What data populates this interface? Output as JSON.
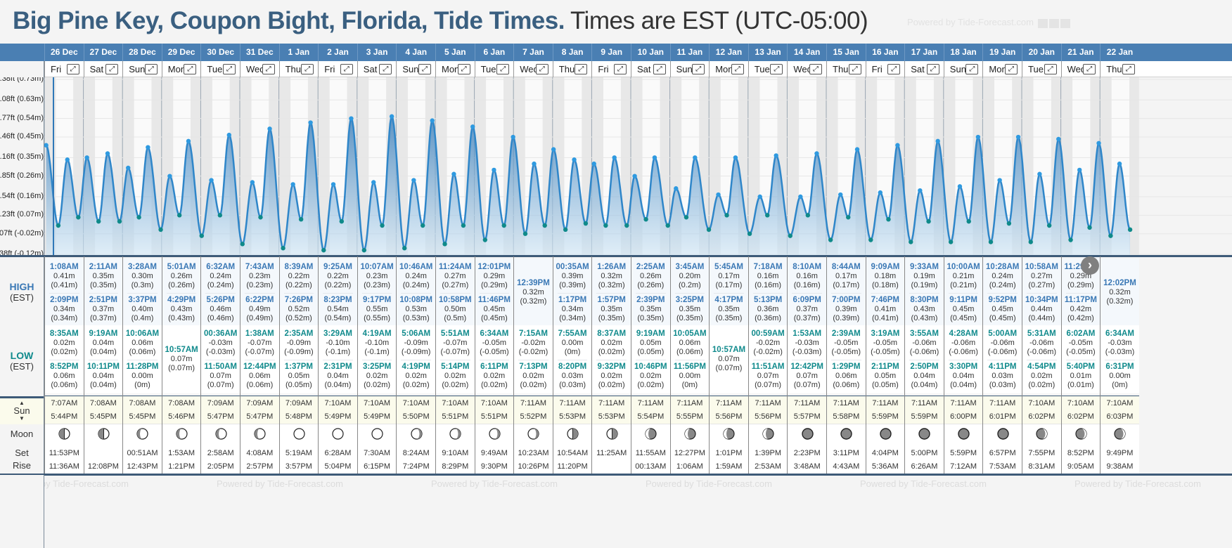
{
  "header": {
    "title": "Big Pine Key, Coupon Bight, Florida, Tide Times.",
    "timezone_note": "Times are EST (UTC-05:00)",
    "powered_by": "Powered by Tide-Forecast.com"
  },
  "labels": {
    "high": "HIGH",
    "high_sub": "(EST)",
    "low": "LOW",
    "low_sub": "(EST)",
    "sun": "Sun",
    "moon": "Moon",
    "set": "Set",
    "rise": "Rise",
    "expand_icon": "⤢",
    "next_icon": "›"
  },
  "colors": {
    "header_blue": "#4a7fb3",
    "title_blue": "#3a5f80",
    "high_text": "#3a78b5",
    "low_text": "#108a8c",
    "tide_line": "#2f86c9",
    "high_marker": "#2f9ae0",
    "low_marker": "#0f8a8a",
    "sun_row_bg": "#fbfbec"
  },
  "chart_data": {
    "type": "area",
    "title": "Tide height",
    "ylabel": "Height",
    "yaxis_ticks": [
      {
        "label": "2.38ft (0.73m)",
        "m": 0.73
      },
      {
        "label": "2.08ft (0.63m)",
        "m": 0.63
      },
      {
        "label": "1.77ft (0.54m)",
        "m": 0.54
      },
      {
        "label": "1.46ft (0.45m)",
        "m": 0.45
      },
      {
        "label": "1.16ft (0.35m)",
        "m": 0.35
      },
      {
        "label": "0.85ft (0.26m)",
        "m": 0.26
      },
      {
        "label": "0.54ft (0.16m)",
        "m": 0.16
      },
      {
        "label": "0.23ft (0.07m)",
        "m": 0.07
      },
      {
        "label": "-0.07ft (-0.02m)",
        "m": -0.02
      },
      {
        "label": "-0.38ft (-0.12m)",
        "m": -0.12
      }
    ],
    "ylim": [
      -0.12,
      0.73
    ],
    "grid": true,
    "x_unit": "days from 26 Dec 00:00",
    "series": [
      {
        "name": "tide",
        "points": []
      }
    ]
  },
  "days": [
    {
      "date": "26 Dec",
      "dow": "Fri",
      "highs": [
        {
          "t": "1:08AM",
          "m": "0.41m",
          "m2": "(0.41m)"
        },
        {
          "t": "2:09PM",
          "m": "0.34m",
          "m2": "(0.34m)"
        }
      ],
      "lows": [
        {
          "t": "8:35AM",
          "m": "0.02m",
          "m2": "(0.02m)"
        },
        {
          "t": "8:52PM",
          "m": "0.06m",
          "m2": "(0.06m)"
        }
      ],
      "sunrise": "7:07AM",
      "sunset": "5:44PM",
      "moon_phase": "first-quarter",
      "moon_set": "11:53PM",
      "moon_rise": "11:36AM"
    },
    {
      "date": "27 Dec",
      "dow": "Sat",
      "highs": [
        {
          "t": "2:11AM",
          "m": "0.35m",
          "m2": "(0.35m)"
        },
        {
          "t": "2:51PM",
          "m": "0.37m",
          "m2": "(0.37m)"
        }
      ],
      "lows": [
        {
          "t": "9:19AM",
          "m": "0.04m",
          "m2": "(0.04m)"
        },
        {
          "t": "10:11PM",
          "m": "0.04m",
          "m2": "(0.04m)"
        }
      ],
      "sunrise": "7:08AM",
      "sunset": "5:45PM",
      "moon_phase": "first-quarter",
      "moon_set": "",
      "moon_rise": "12:08PM"
    },
    {
      "date": "28 Dec",
      "dow": "Sun",
      "highs": [
        {
          "t": "3:28AM",
          "m": "0.30m",
          "m2": "(0.3m)"
        },
        {
          "t": "3:37PM",
          "m": "0.40m",
          "m2": "(0.4m)"
        }
      ],
      "lows": [
        {
          "t": "10:06AM",
          "m": "0.06m",
          "m2": "(0.06m)"
        },
        {
          "t": "11:28PM",
          "m": "0.00m",
          "m2": "(0m)"
        }
      ],
      "sunrise": "7:08AM",
      "sunset": "5:45PM",
      "moon_phase": "waxing-gibbous",
      "moon_set": "00:51AM",
      "moon_rise": "12:43PM"
    },
    {
      "date": "29 Dec",
      "dow": "Mon",
      "highs": [
        {
          "t": "5:01AM",
          "m": "0.26m",
          "m2": "(0.26m)"
        },
        {
          "t": "4:29PM",
          "m": "0.43m",
          "m2": "(0.43m)"
        }
      ],
      "lows": [
        {
          "t": "10:57AM",
          "m": "0.07m",
          "m2": "(0.07m)"
        }
      ],
      "sunrise": "7:08AM",
      "sunset": "5:46PM",
      "moon_phase": "waxing-gibbous",
      "moon_set": "1:53AM",
      "moon_rise": "1:21PM"
    },
    {
      "date": "30 Dec",
      "dow": "Tue",
      "highs": [
        {
          "t": "6:32AM",
          "m": "0.24m",
          "m2": "(0.24m)"
        },
        {
          "t": "5:26PM",
          "m": "0.46m",
          "m2": "(0.46m)"
        }
      ],
      "lows": [
        {
          "t": "00:36AM",
          "m": "-0.03m",
          "m2": "(-0.03m)"
        },
        {
          "t": "11:50AM",
          "m": "0.07m",
          "m2": "(0.07m)"
        }
      ],
      "sunrise": "7:09AM",
      "sunset": "5:47PM",
      "moon_phase": "waxing-gibbous",
      "moon_set": "2:58AM",
      "moon_rise": "2:05PM"
    },
    {
      "date": "31 Dec",
      "dow": "Wed",
      "highs": [
        {
          "t": "7:43AM",
          "m": "0.23m",
          "m2": "(0.23m)"
        },
        {
          "t": "6:22PM",
          "m": "0.49m",
          "m2": "(0.49m)"
        }
      ],
      "lows": [
        {
          "t": "1:38AM",
          "m": "-0.07m",
          "m2": "(-0.07m)"
        },
        {
          "t": "12:44PM",
          "m": "0.06m",
          "m2": "(0.06m)"
        }
      ],
      "sunrise": "7:09AM",
      "sunset": "5:47PM",
      "moon_phase": "waxing-gibbous",
      "moon_set": "4:08AM",
      "moon_rise": "2:57PM"
    },
    {
      "date": "1 Jan",
      "dow": "Thu",
      "highs": [
        {
          "t": "8:39AM",
          "m": "0.22m",
          "m2": "(0.22m)"
        },
        {
          "t": "7:26PM",
          "m": "0.52m",
          "m2": "(0.52m)"
        }
      ],
      "lows": [
        {
          "t": "2:35AM",
          "m": "-0.09m",
          "m2": "(-0.09m)"
        },
        {
          "t": "1:37PM",
          "m": "0.05m",
          "m2": "(0.05m)"
        }
      ],
      "sunrise": "7:09AM",
      "sunset": "5:48PM",
      "moon_phase": "full",
      "moon_set": "5:19AM",
      "moon_rise": "3:57PM"
    },
    {
      "date": "2 Jan",
      "dow": "Fri",
      "highs": [
        {
          "t": "9:25AM",
          "m": "0.22m",
          "m2": "(0.22m)"
        },
        {
          "t": "8:23PM",
          "m": "0.54m",
          "m2": "(0.54m)"
        }
      ],
      "lows": [
        {
          "t": "3:29AM",
          "m": "-0.10m",
          "m2": "(-0.1m)"
        },
        {
          "t": "2:31PM",
          "m": "0.04m",
          "m2": "(0.04m)"
        }
      ],
      "sunrise": "7:10AM",
      "sunset": "5:49PM",
      "moon_phase": "full",
      "moon_set": "6:28AM",
      "moon_rise": "5:04PM"
    },
    {
      "date": "3 Jan",
      "dow": "Sat",
      "highs": [
        {
          "t": "10:07AM",
          "m": "0.23m",
          "m2": "(0.23m)"
        },
        {
          "t": "9:17PM",
          "m": "0.55m",
          "m2": "(0.55m)"
        }
      ],
      "lows": [
        {
          "t": "4:19AM",
          "m": "-0.10m",
          "m2": "(-0.1m)"
        },
        {
          "t": "3:25PM",
          "m": "0.02m",
          "m2": "(0.02m)"
        }
      ],
      "sunrise": "7:10AM",
      "sunset": "5:49PM",
      "moon_phase": "full",
      "moon_set": "7:30AM",
      "moon_rise": "6:15PM"
    },
    {
      "date": "4 Jan",
      "dow": "Sun",
      "highs": [
        {
          "t": "10:46AM",
          "m": "0.24m",
          "m2": "(0.24m)"
        },
        {
          "t": "10:08PM",
          "m": "0.53m",
          "m2": "(0.53m)"
        }
      ],
      "lows": [
        {
          "t": "5:06AM",
          "m": "-0.09m",
          "m2": "(-0.09m)"
        },
        {
          "t": "4:19PM",
          "m": "0.02m",
          "m2": "(0.02m)"
        }
      ],
      "sunrise": "7:10AM",
      "sunset": "5:50PM",
      "moon_phase": "waning-gibbous",
      "moon_set": "8:24AM",
      "moon_rise": "7:24PM"
    },
    {
      "date": "5 Jan",
      "dow": "Mon",
      "highs": [
        {
          "t": "11:24AM",
          "m": "0.27m",
          "m2": "(0.27m)"
        },
        {
          "t": "10:58PM",
          "m": "0.50m",
          "m2": "(0.5m)"
        }
      ],
      "lows": [
        {
          "t": "5:51AM",
          "m": "-0.07m",
          "m2": "(-0.07m)"
        },
        {
          "t": "5:14PM",
          "m": "0.02m",
          "m2": "(0.02m)"
        }
      ],
      "sunrise": "7:10AM",
      "sunset": "5:51PM",
      "moon_phase": "waning-gibbous",
      "moon_set": "9:10AM",
      "moon_rise": "8:29PM"
    },
    {
      "date": "6 Jan",
      "dow": "Tue",
      "highs": [
        {
          "t": "12:01PM",
          "m": "0.29m",
          "m2": "(0.29m)"
        },
        {
          "t": "11:46PM",
          "m": "0.45m",
          "m2": "(0.45m)"
        }
      ],
      "lows": [
        {
          "t": "6:34AM",
          "m": "-0.05m",
          "m2": "(-0.05m)"
        },
        {
          "t": "6:11PM",
          "m": "0.02m",
          "m2": "(0.02m)"
        }
      ],
      "sunrise": "7:10AM",
      "sunset": "5:51PM",
      "moon_phase": "waning-gibbous",
      "moon_set": "9:49AM",
      "moon_rise": "9:30PM"
    },
    {
      "date": "7 Jan",
      "dow": "Wed",
      "highs": [
        {
          "t": "12:39PM",
          "m": "0.32m",
          "m2": "(0.32m)"
        }
      ],
      "lows": [
        {
          "t": "7:15AM",
          "m": "-0.02m",
          "m2": "(-0.02m)"
        },
        {
          "t": "7:13PM",
          "m": "0.02m",
          "m2": "(0.02m)"
        }
      ],
      "sunrise": "7:11AM",
      "sunset": "5:52PM",
      "moon_phase": "waning-gibbous",
      "moon_set": "10:23AM",
      "moon_rise": "10:26PM"
    },
    {
      "date": "8 Jan",
      "dow": "Thu",
      "highs": [
        {
          "t": "00:35AM",
          "m": "0.39m",
          "m2": "(0.39m)"
        },
        {
          "t": "1:17PM",
          "m": "0.34m",
          "m2": "(0.34m)"
        }
      ],
      "lows": [
        {
          "t": "7:55AM",
          "m": "0.00m",
          "m2": "(0m)"
        },
        {
          "t": "8:20PM",
          "m": "0.03m",
          "m2": "(0.03m)"
        }
      ],
      "sunrise": "7:11AM",
      "sunset": "5:53PM",
      "moon_phase": "last-quarter",
      "moon_set": "10:54AM",
      "moon_rise": "11:20PM"
    },
    {
      "date": "9 Jan",
      "dow": "Fri",
      "highs": [
        {
          "t": "1:26AM",
          "m": "0.32m",
          "m2": "(0.32m)"
        },
        {
          "t": "1:57PM",
          "m": "0.35m",
          "m2": "(0.35m)"
        }
      ],
      "lows": [
        {
          "t": "8:37AM",
          "m": "0.02m",
          "m2": "(0.02m)"
        },
        {
          "t": "9:32PM",
          "m": "0.02m",
          "m2": "(0.02m)"
        }
      ],
      "sunrise": "7:11AM",
      "sunset": "5:53PM",
      "moon_phase": "last-quarter",
      "moon_set": "11:25AM",
      "moon_rise": ""
    },
    {
      "date": "10 Jan",
      "dow": "Sat",
      "highs": [
        {
          "t": "2:25AM",
          "m": "0.26m",
          "m2": "(0.26m)"
        },
        {
          "t": "2:39PM",
          "m": "0.35m",
          "m2": "(0.35m)"
        }
      ],
      "lows": [
        {
          "t": "9:19AM",
          "m": "0.05m",
          "m2": "(0.05m)"
        },
        {
          "t": "10:46PM",
          "m": "0.02m",
          "m2": "(0.02m)"
        }
      ],
      "sunrise": "7:11AM",
      "sunset": "5:54PM",
      "moon_phase": "waning-crescent",
      "moon_set": "11:55AM",
      "moon_rise": "00:13AM"
    },
    {
      "date": "11 Jan",
      "dow": "Sun",
      "highs": [
        {
          "t": "3:45AM",
          "m": "0.20m",
          "m2": "(0.2m)"
        },
        {
          "t": "3:25PM",
          "m": "0.35m",
          "m2": "(0.35m)"
        }
      ],
      "lows": [
        {
          "t": "10:05AM",
          "m": "0.06m",
          "m2": "(0.06m)"
        },
        {
          "t": "11:56PM",
          "m": "0.00m",
          "m2": "(0m)"
        }
      ],
      "sunrise": "7:11AM",
      "sunset": "5:55PM",
      "moon_phase": "waning-crescent",
      "moon_set": "12:27PM",
      "moon_rise": "1:06AM"
    },
    {
      "date": "12 Jan",
      "dow": "Mon",
      "highs": [
        {
          "t": "5:45AM",
          "m": "0.17m",
          "m2": "(0.17m)"
        },
        {
          "t": "4:17PM",
          "m": "0.35m",
          "m2": "(0.35m)"
        }
      ],
      "lows": [
        {
          "t": "10:57AM",
          "m": "0.07m",
          "m2": "(0.07m)"
        }
      ],
      "sunrise": "7:11AM",
      "sunset": "5:56PM",
      "moon_phase": "waning-crescent",
      "moon_set": "1:01PM",
      "moon_rise": "1:59AM"
    },
    {
      "date": "13 Jan",
      "dow": "Tue",
      "highs": [
        {
          "t": "7:18AM",
          "m": "0.16m",
          "m2": "(0.16m)"
        },
        {
          "t": "5:13PM",
          "m": "0.36m",
          "m2": "(0.36m)"
        }
      ],
      "lows": [
        {
          "t": "00:59AM",
          "m": "-0.02m",
          "m2": "(-0.02m)"
        },
        {
          "t": "11:51AM",
          "m": "0.07m",
          "m2": "(0.07m)"
        }
      ],
      "sunrise": "7:11AM",
      "sunset": "5:56PM",
      "moon_phase": "waning-crescent",
      "moon_set": "1:39PM",
      "moon_rise": "2:53AM"
    },
    {
      "date": "14 Jan",
      "dow": "Wed",
      "highs": [
        {
          "t": "8:10AM",
          "m": "0.16m",
          "m2": "(0.16m)"
        },
        {
          "t": "6:09PM",
          "m": "0.37m",
          "m2": "(0.37m)"
        }
      ],
      "lows": [
        {
          "t": "1:53AM",
          "m": "-0.03m",
          "m2": "(-0.03m)"
        },
        {
          "t": "12:42PM",
          "m": "0.07m",
          "m2": "(0.07m)"
        }
      ],
      "sunrise": "7:11AM",
      "sunset": "5:57PM",
      "moon_phase": "new",
      "moon_set": "2:23PM",
      "moon_rise": "3:48AM"
    },
    {
      "date": "15 Jan",
      "dow": "Thu",
      "highs": [
        {
          "t": "8:44AM",
          "m": "0.17m",
          "m2": "(0.17m)"
        },
        {
          "t": "7:00PM",
          "m": "0.39m",
          "m2": "(0.39m)"
        }
      ],
      "lows": [
        {
          "t": "2:39AM",
          "m": "-0.05m",
          "m2": "(-0.05m)"
        },
        {
          "t": "1:29PM",
          "m": "0.06m",
          "m2": "(0.06m)"
        }
      ],
      "sunrise": "7:11AM",
      "sunset": "5:58PM",
      "moon_phase": "new",
      "moon_set": "3:11PM",
      "moon_rise": "4:43AM"
    },
    {
      "date": "16 Jan",
      "dow": "Fri",
      "highs": [
        {
          "t": "9:09AM",
          "m": "0.18m",
          "m2": "(0.18m)"
        },
        {
          "t": "7:46PM",
          "m": "0.41m",
          "m2": "(0.41m)"
        }
      ],
      "lows": [
        {
          "t": "3:19AM",
          "m": "-0.05m",
          "m2": "(-0.05m)"
        },
        {
          "t": "2:11PM",
          "m": "0.05m",
          "m2": "(0.05m)"
        }
      ],
      "sunrise": "7:11AM",
      "sunset": "5:59PM",
      "moon_phase": "new",
      "moon_set": "4:04PM",
      "moon_rise": "5:36AM"
    },
    {
      "date": "17 Jan",
      "dow": "Sat",
      "highs": [
        {
          "t": "9:33AM",
          "m": "0.19m",
          "m2": "(0.19m)"
        },
        {
          "t": "8:30PM",
          "m": "0.43m",
          "m2": "(0.43m)"
        }
      ],
      "lows": [
        {
          "t": "3:55AM",
          "m": "-0.06m",
          "m2": "(-0.06m)"
        },
        {
          "t": "2:50PM",
          "m": "0.04m",
          "m2": "(0.04m)"
        }
      ],
      "sunrise": "7:11AM",
      "sunset": "5:59PM",
      "moon_phase": "new",
      "moon_set": "5:00PM",
      "moon_rise": "6:26AM"
    },
    {
      "date": "18 Jan",
      "dow": "Sun",
      "highs": [
        {
          "t": "10:00AM",
          "m": "0.21m",
          "m2": "(0.21m)"
        },
        {
          "t": "9:11PM",
          "m": "0.45m",
          "m2": "(0.45m)"
        }
      ],
      "lows": [
        {
          "t": "4:28AM",
          "m": "-0.06m",
          "m2": "(-0.06m)"
        },
        {
          "t": "3:30PM",
          "m": "0.04m",
          "m2": "(0.04m)"
        }
      ],
      "sunrise": "7:11AM",
      "sunset": "6:00PM",
      "moon_phase": "new",
      "moon_set": "5:59PM",
      "moon_rise": "7:12AM"
    },
    {
      "date": "19 Jan",
      "dow": "Mon",
      "highs": [
        {
          "t": "10:28AM",
          "m": "0.24m",
          "m2": "(0.24m)"
        },
        {
          "t": "9:52PM",
          "m": "0.45m",
          "m2": "(0.45m)"
        }
      ],
      "lows": [
        {
          "t": "5:00AM",
          "m": "-0.06m",
          "m2": "(-0.06m)"
        },
        {
          "t": "4:11PM",
          "m": "0.03m",
          "m2": "(0.03m)"
        }
      ],
      "sunrise": "7:11AM",
      "sunset": "6:01PM",
      "moon_phase": "new",
      "moon_set": "6:57PM",
      "moon_rise": "7:53AM"
    },
    {
      "date": "20 Jan",
      "dow": "Tue",
      "highs": [
        {
          "t": "10:58AM",
          "m": "0.27m",
          "m2": "(0.27m)"
        },
        {
          "t": "10:34PM",
          "m": "0.44m",
          "m2": "(0.44m)"
        }
      ],
      "lows": [
        {
          "t": "5:31AM",
          "m": "-0.06m",
          "m2": "(-0.06m)"
        },
        {
          "t": "4:54PM",
          "m": "0.02m",
          "m2": "(0.02m)"
        }
      ],
      "sunrise": "7:10AM",
      "sunset": "6:02PM",
      "moon_phase": "waxing-crescent",
      "moon_set": "7:55PM",
      "moon_rise": "8:31AM"
    },
    {
      "date": "21 Jan",
      "dow": "Wed",
      "highs": [
        {
          "t": "11:29AM",
          "m": "0.29m",
          "m2": "(0.29m)"
        },
        {
          "t": "11:17PM",
          "m": "0.42m",
          "m2": "(0.42m)"
        }
      ],
      "lows": [
        {
          "t": "6:02AM",
          "m": "-0.05m",
          "m2": "(-0.05m)"
        },
        {
          "t": "5:40PM",
          "m": "0.01m",
          "m2": "(0.01m)"
        }
      ],
      "sunrise": "7:10AM",
      "sunset": "6:02PM",
      "moon_phase": "waxing-crescent",
      "moon_set": "8:52PM",
      "moon_rise": "9:05AM"
    },
    {
      "date": "22 Jan",
      "dow": "Thu",
      "highs": [
        {
          "t": "12:02PM",
          "m": "0.32m",
          "m2": "(0.32m)"
        }
      ],
      "lows": [
        {
          "t": "6:34AM",
          "m": "-0.03m",
          "m2": "(-0.03m)"
        },
        {
          "t": "6:31PM",
          "m": "0.00m",
          "m2": "(0m)"
        }
      ],
      "sunrise": "7:10AM",
      "sunset": "6:03PM",
      "moon_phase": "waxing-crescent",
      "moon_set": "9:49PM",
      "moon_rise": "9:38AM"
    }
  ]
}
